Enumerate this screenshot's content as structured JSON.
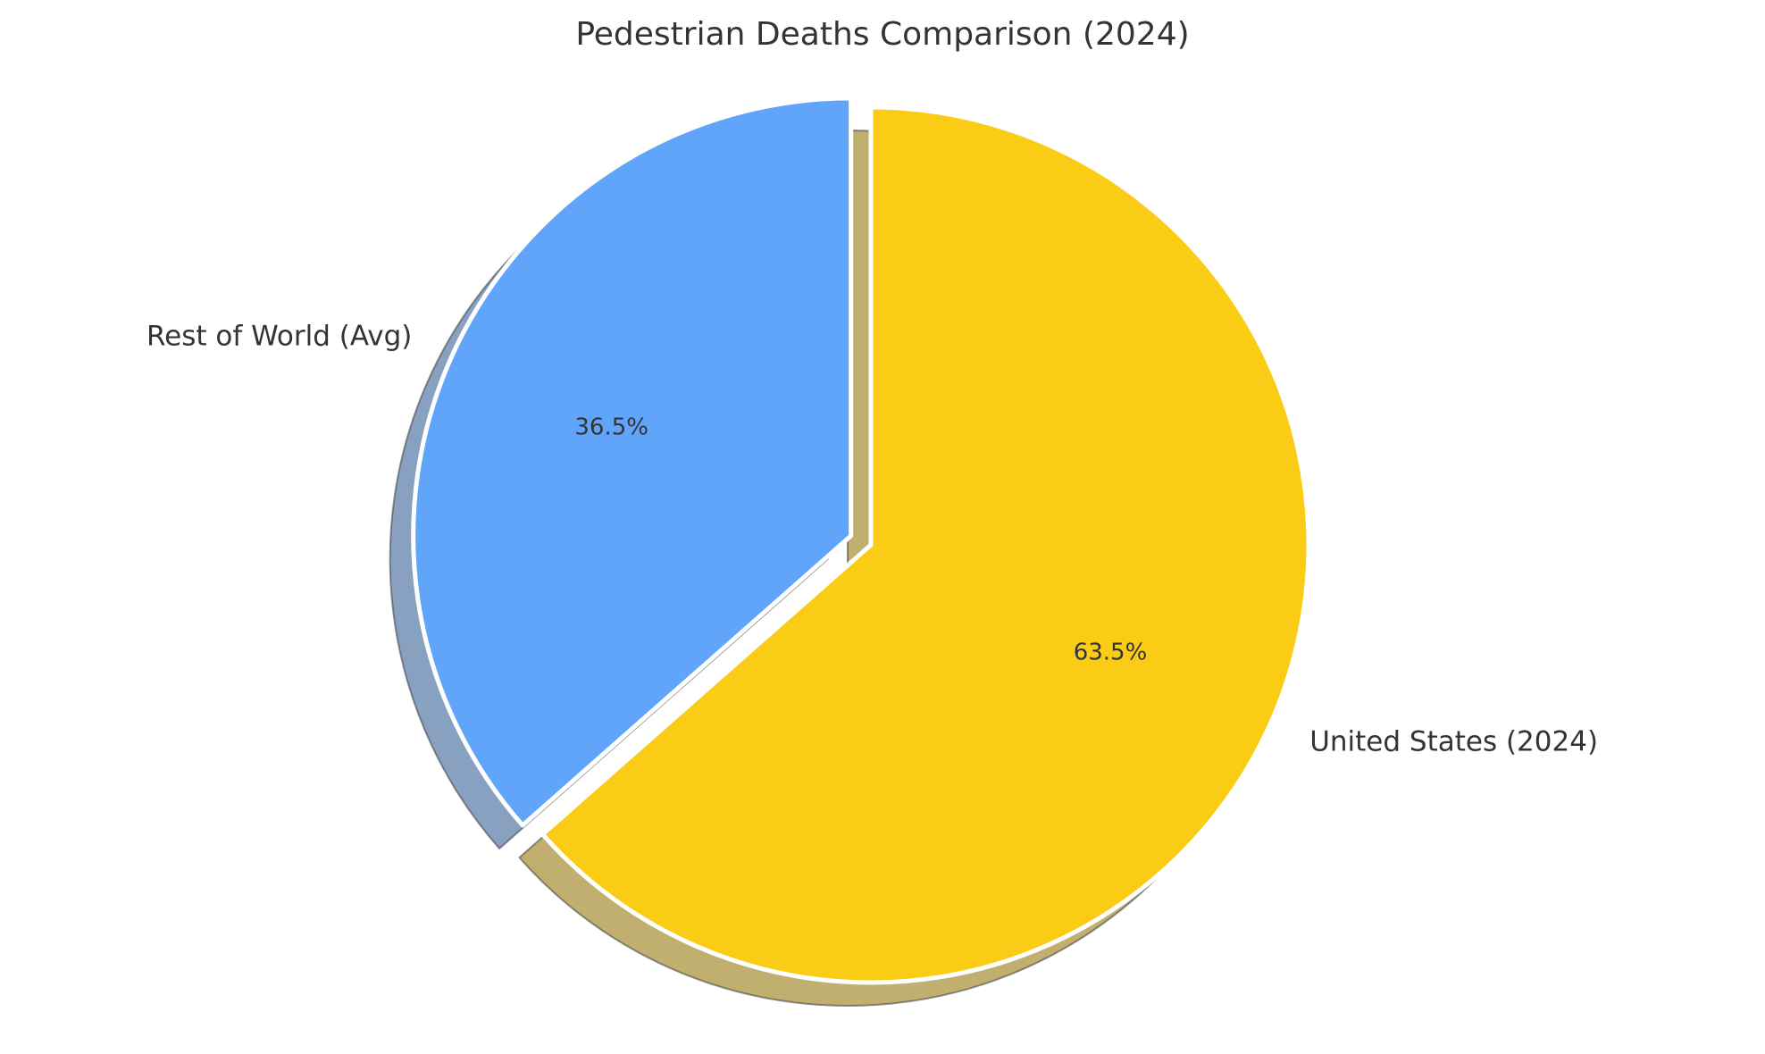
{
  "chart_data": {
    "type": "pie",
    "title": "Pedestrian Deaths Comparison (2024)",
    "start_angle_deg": 90,
    "direction": "clockwise",
    "shadow": true,
    "slices": [
      {
        "label": "United States (2024)",
        "percent": 63.5,
        "pct_label": "63.5%",
        "color": "#FACC15",
        "explode": 0
      },
      {
        "label": "Rest of World (Avg)",
        "percent": 36.5,
        "pct_label": "36.5%",
        "color": "#60A5FA",
        "explode": 0.05
      }
    ]
  }
}
